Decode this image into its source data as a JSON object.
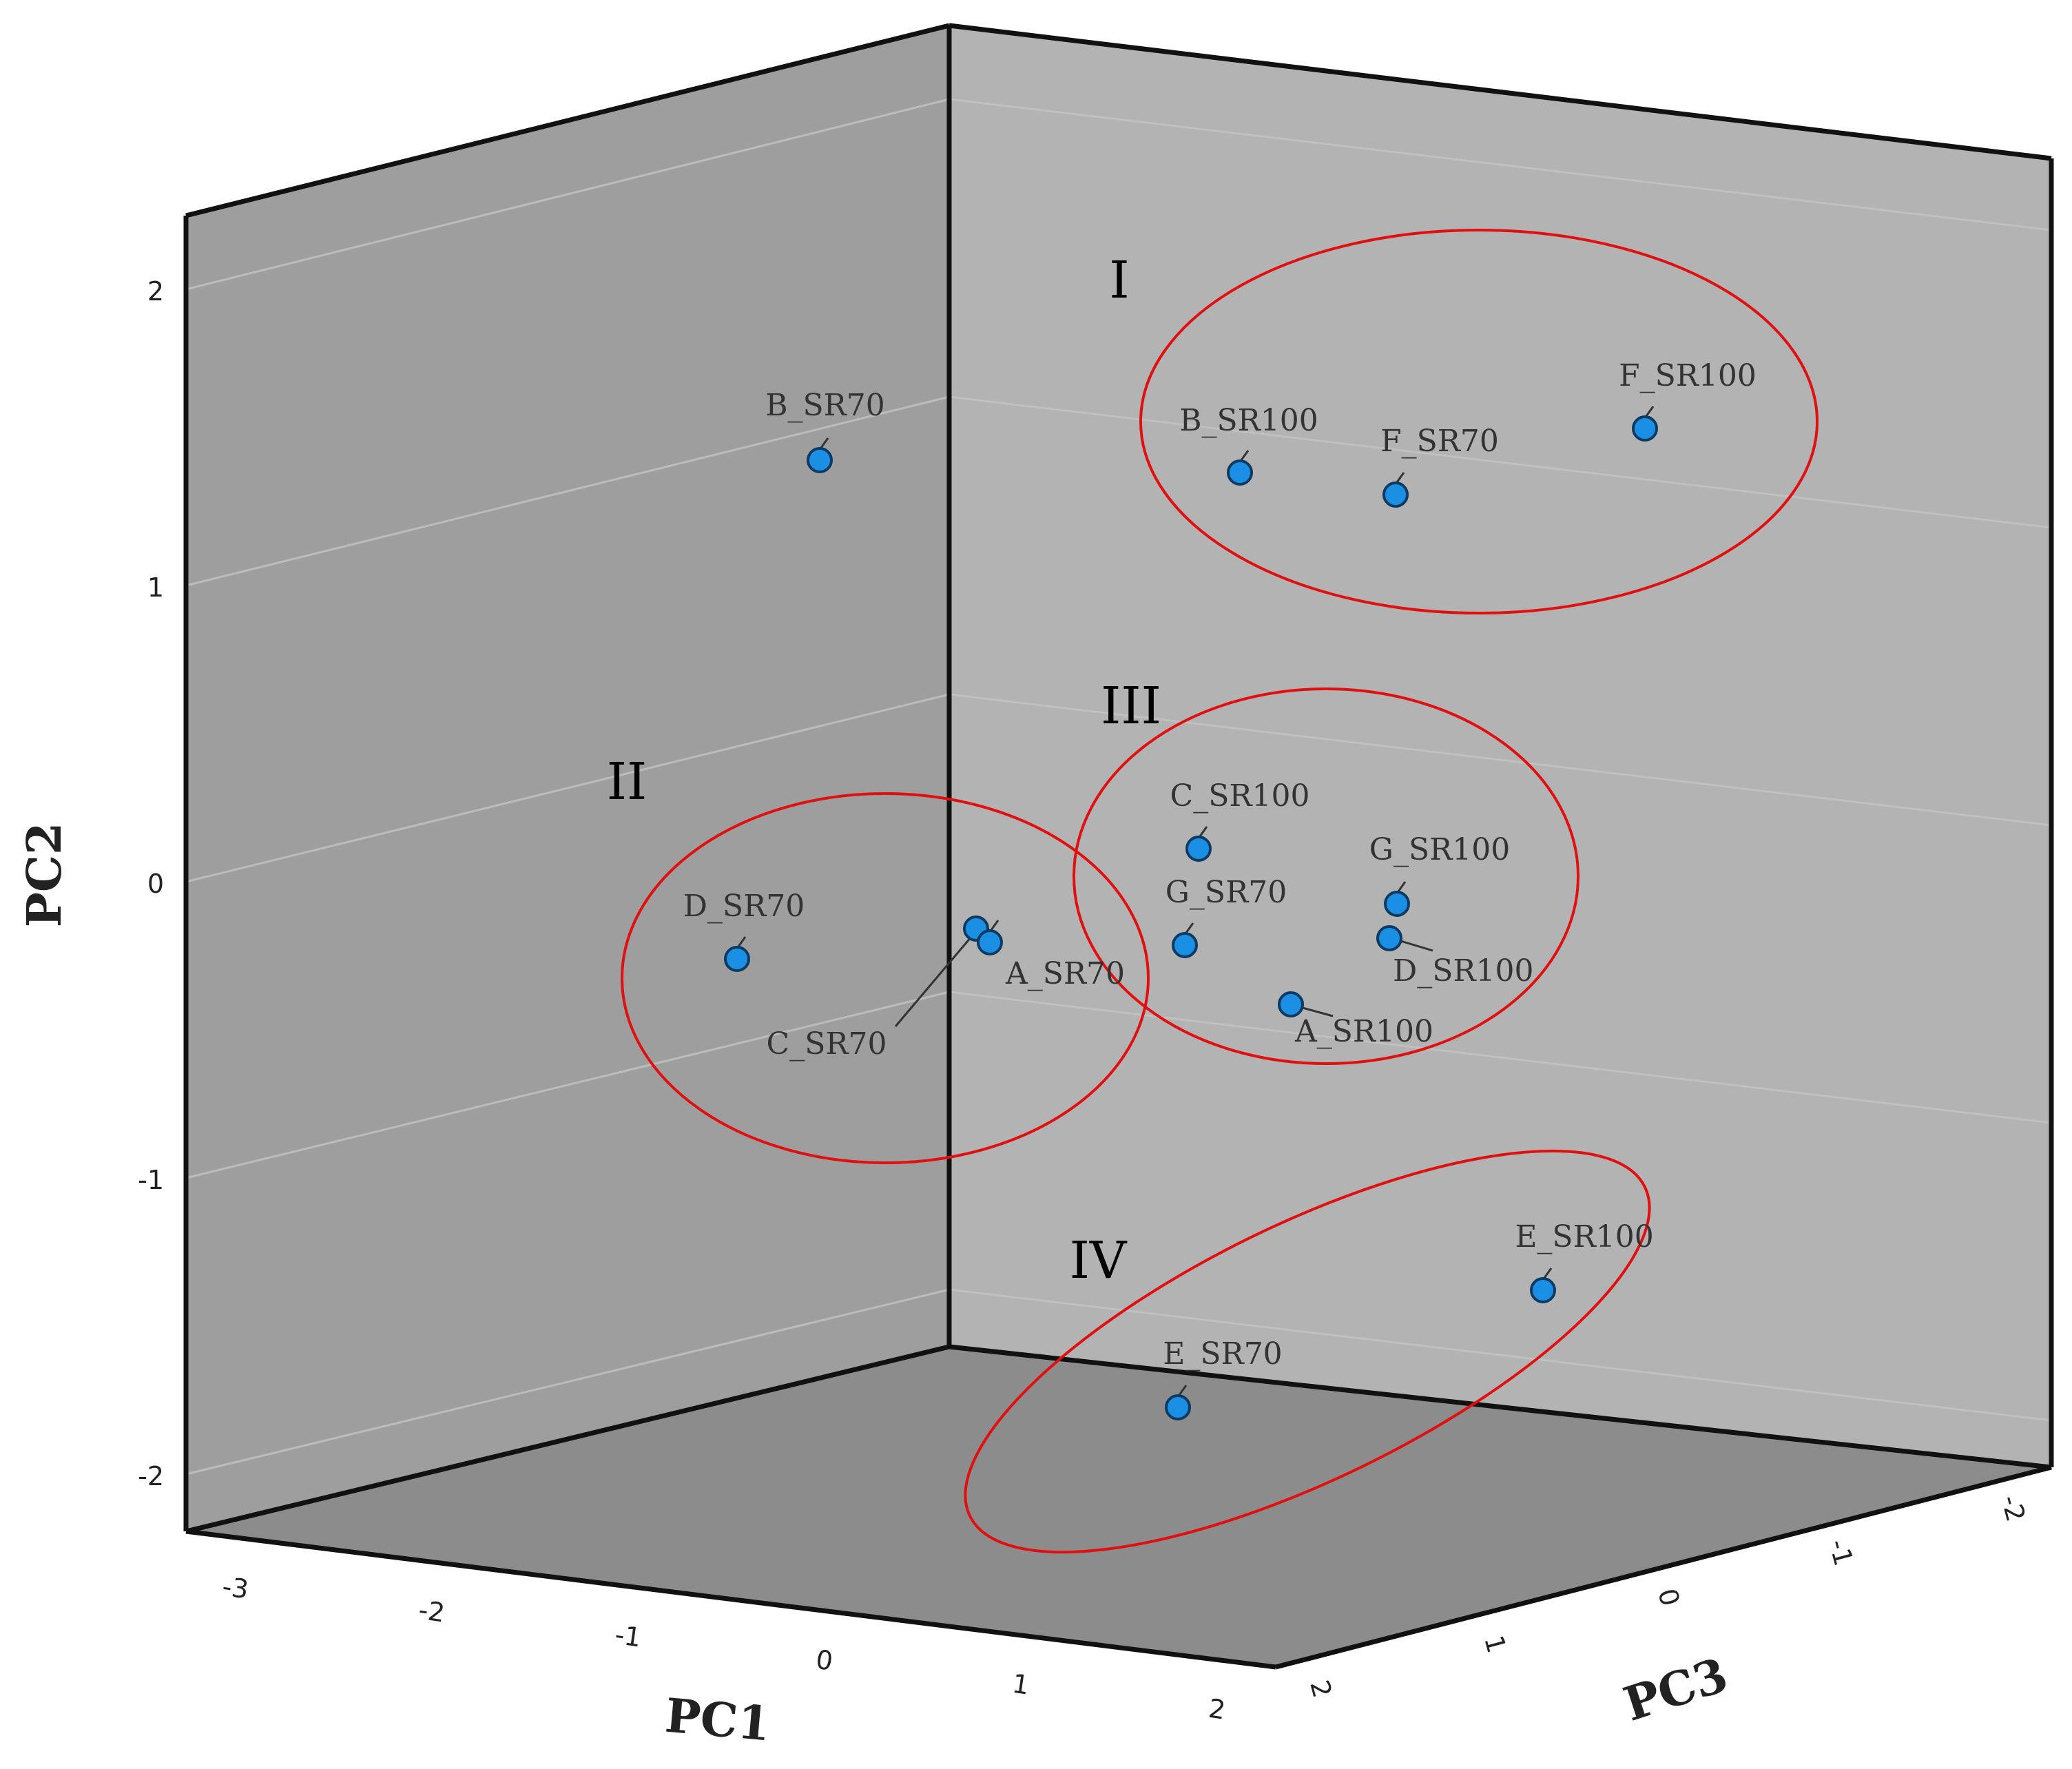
{
  "chart_data": {
    "type": "scatter",
    "title": "",
    "xlabel": "PC1",
    "ylabel": "PC2",
    "zlabel": "PC3",
    "colors": {
      "point": "#1b8fe3",
      "point_stroke": "#0b3a63",
      "ellipse": "#e01010",
      "back_wall": "#b3b3b3",
      "left_wall": "#9e9e9e",
      "floor": "#8c8c8c"
    },
    "ticks": {
      "pc1": [
        "-3",
        "-2",
        "-1",
        "0",
        "1",
        "2"
      ],
      "pc2": [
        "2",
        "1",
        "0",
        "-1",
        "-2"
      ],
      "pc3": [
        "2",
        "1",
        "0",
        "-1",
        "-2"
      ]
    },
    "points": [
      {
        "label": "B_SR70",
        "pc2": 1.4
      },
      {
        "label": "B_SR100",
        "pc2": 1.35
      },
      {
        "label": "F_SR70",
        "pc2": 1.28
      },
      {
        "label": "F_SR100",
        "pc2": 1.5
      },
      {
        "label": "D_SR70",
        "pc2": -0.28
      },
      {
        "label": "C_SR70",
        "pc2": -0.18
      },
      {
        "label": "A_SR70",
        "pc2": -0.23
      },
      {
        "label": "C_SR100",
        "pc2": 0.08
      },
      {
        "label": "G_SR70",
        "pc2": -0.24
      },
      {
        "label": "G_SR100",
        "pc2": -0.1
      },
      {
        "label": "D_SR100",
        "pc2": -0.22
      },
      {
        "label": "A_SR100",
        "pc2": -0.44
      },
      {
        "label": "E_SR100",
        "pc2": -1.4
      },
      {
        "label": "E_SR70",
        "pc2": -1.78
      }
    ],
    "clusters": [
      {
        "label": "I",
        "members": [
          "B_SR100",
          "F_SR70",
          "F_SR100"
        ]
      },
      {
        "label": "II",
        "members": [
          "D_SR70",
          "C_SR70",
          "A_SR70"
        ]
      },
      {
        "label": "III",
        "members": [
          "C_SR100",
          "G_SR70",
          "G_SR100",
          "D_SR100",
          "A_SR100"
        ]
      },
      {
        "label": "IV",
        "members": [
          "E_SR100",
          "E_SR70"
        ]
      }
    ]
  }
}
